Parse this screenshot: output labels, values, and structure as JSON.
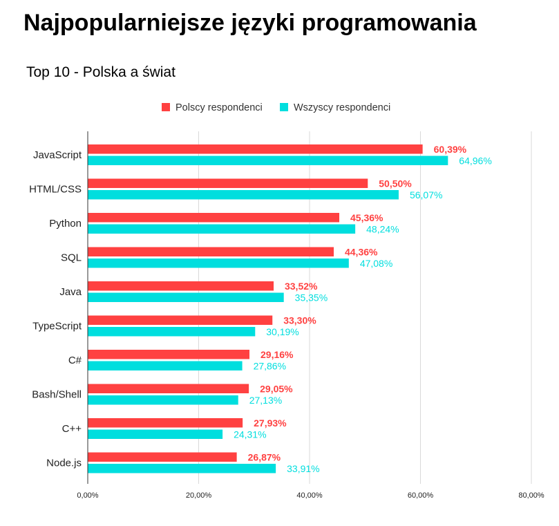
{
  "chart_data": {
    "type": "bar",
    "orientation": "horizontal",
    "title": "Najpopularniejsze języki programowania",
    "subtitle": "Top 10 - Polska a świat",
    "categories": [
      "JavaScript",
      "HTML/CSS",
      "Python",
      "SQL",
      "Java",
      "TypeScript",
      "C#",
      "Bash/Shell",
      "C++",
      "Node.js"
    ],
    "series": [
      {
        "name": "Polscy respondenci",
        "color": "#ff4141",
        "values": [
          60.39,
          50.5,
          45.36,
          44.36,
          33.52,
          33.3,
          29.16,
          29.05,
          27.93,
          26.87
        ],
        "labels": [
          "60,39%",
          "50,50%",
          "45,36%",
          "44,36%",
          "33,52%",
          "33,30%",
          "29,16%",
          "29,05%",
          "27,93%",
          "26,87%"
        ]
      },
      {
        "name": "Wszyscy respondenci",
        "color": "#00dede",
        "values": [
          64.96,
          56.07,
          48.24,
          47.08,
          35.35,
          30.19,
          27.86,
          27.13,
          24.31,
          33.91
        ],
        "labels": [
          "64,96%",
          "56,07%",
          "48,24%",
          "47,08%",
          "35,35%",
          "30,19%",
          "27,86%",
          "27,13%",
          "24,31%",
          "33,91%"
        ]
      }
    ],
    "xlim": [
      0,
      80
    ],
    "xticks": [
      0,
      20,
      40,
      60,
      80
    ],
    "xtick_labels": [
      "0,00%",
      "20,00%",
      "40,00%",
      "60,00%",
      "80,00%"
    ],
    "grid": true,
    "legend_position": "top"
  }
}
